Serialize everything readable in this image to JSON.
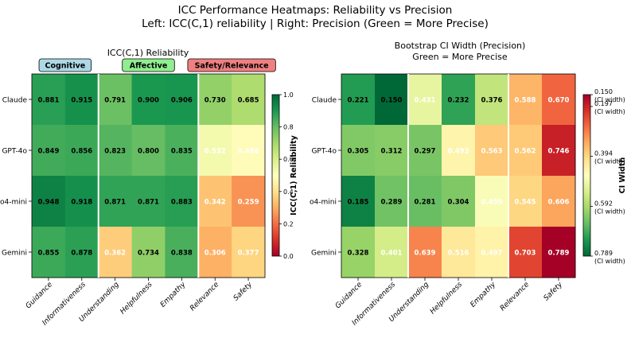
{
  "suptitle": {
    "line1": "ICC Performance Heatmaps: Reliability vs Precision",
    "line2": "Left: ICC(C,1) reliability | Right: Precision (Green = More Precise)"
  },
  "chart_data": [
    {
      "type": "heatmap",
      "title": "ICC(C,1) Reliability",
      "rows": [
        "Claude",
        "GPT-4o",
        "o4-mini",
        "Gemini"
      ],
      "columns": [
        "Guidance",
        "Informativeness",
        "Understanding",
        "Helpfulness",
        "Empathy",
        "Relevance",
        "Safety"
      ],
      "values": [
        [
          0.881,
          0.915,
          0.791,
          0.9,
          0.906,
          0.73,
          0.685
        ],
        [
          0.849,
          0.856,
          0.823,
          0.8,
          0.835,
          0.532,
          0.486
        ],
        [
          0.948,
          0.918,
          0.871,
          0.871,
          0.883,
          0.342,
          0.259
        ],
        [
          0.855,
          0.878,
          0.362,
          0.734,
          0.838,
          0.306,
          0.377
        ]
      ],
      "value_labels": [
        [
          "0.881",
          "0.915",
          "0.791",
          "0.900",
          "0.906",
          "0.730",
          "0.685"
        ],
        [
          "0.849",
          "0.856",
          "0.823",
          "0.800",
          "0.835",
          "0.532",
          "0.486"
        ],
        [
          "0.948",
          "0.918",
          "0.871",
          "0.871",
          "0.883",
          "0.342",
          "0.259"
        ],
        [
          "0.855",
          "0.878",
          "0.362",
          "0.734",
          "0.838",
          "0.306",
          "0.377"
        ]
      ],
      "vmin": 0.0,
      "vmax": 1.0,
      "reverse_colormap": false,
      "colormap": "RdYlGn",
      "group_separators_after_columns": [
        1,
        4
      ],
      "groups": [
        {
          "label": "Cognitive",
          "columns": [
            0,
            1
          ],
          "color": "#add8e6"
        },
        {
          "label": "Affective",
          "columns": [
            2,
            3,
            4
          ],
          "color": "#90ee90"
        },
        {
          "label": "Safety/Relevance",
          "columns": [
            5,
            6
          ],
          "color": "#f08080"
        }
      ],
      "colorbar": {
        "label": "ICC(C,1) Reliability",
        "ticks": [
          {
            "value": 0.0,
            "label": "0.0",
            "sub": ""
          },
          {
            "value": 0.2,
            "label": "0.2",
            "sub": ""
          },
          {
            "value": 0.4,
            "label": "0.4",
            "sub": ""
          },
          {
            "value": 0.6,
            "label": "0.6",
            "sub": ""
          },
          {
            "value": 0.8,
            "label": "0.8",
            "sub": ""
          },
          {
            "value": 1.0,
            "label": "1.0",
            "sub": ""
          }
        ]
      }
    },
    {
      "type": "heatmap",
      "title": "Bootstrap CI Width (Precision)",
      "subtitle": "Green = More Precise",
      "rows": [
        "Claude",
        "GPT-4o",
        "o4-mini",
        "Gemini"
      ],
      "columns": [
        "Guidance",
        "Informativeness",
        "Understanding",
        "Helpfulness",
        "Empathy",
        "Relevance",
        "Safety"
      ],
      "values": [
        [
          0.221,
          0.15,
          0.431,
          0.232,
          0.376,
          0.588,
          0.67
        ],
        [
          0.305,
          0.312,
          0.297,
          0.493,
          0.563,
          0.562,
          0.746
        ],
        [
          0.185,
          0.289,
          0.281,
          0.304,
          0.459,
          0.545,
          0.606
        ],
        [
          0.328,
          0.401,
          0.639,
          0.516,
          0.497,
          0.703,
          0.789
        ]
      ],
      "value_labels": [
        [
          "0.221",
          "0.150",
          "0.431",
          "0.232",
          "0.376",
          "0.588",
          "0.670"
        ],
        [
          "0.305",
          "0.312",
          "0.297",
          "0.493",
          "0.563",
          "0.562",
          "0.746"
        ],
        [
          "0.185",
          "0.289",
          "0.281",
          "0.304",
          "0.459",
          "0.545",
          "0.606"
        ],
        [
          "0.328",
          "0.401",
          "0.639",
          "0.516",
          "0.497",
          "0.703",
          "0.789"
        ]
      ],
      "vmin": 0.15,
      "vmax": 0.789,
      "reverse_colormap": true,
      "colormap": "RdYlGn_r",
      "group_separators_after_columns": [
        1,
        4
      ],
      "groups": [],
      "colorbar": {
        "label": "CI Width",
        "ticks": [
          {
            "value": 0.15,
            "label": "0.150",
            "sub": "(CI width)"
          },
          {
            "value": 0.197,
            "label": "0.197",
            "sub": "(CI width)"
          },
          {
            "value": 0.394,
            "label": "0.394",
            "sub": "(CI width)"
          },
          {
            "value": 0.592,
            "label": "0.592",
            "sub": "(CI width)"
          },
          {
            "value": 0.789,
            "label": "0.789",
            "sub": "(CI width)"
          }
        ]
      }
    }
  ]
}
